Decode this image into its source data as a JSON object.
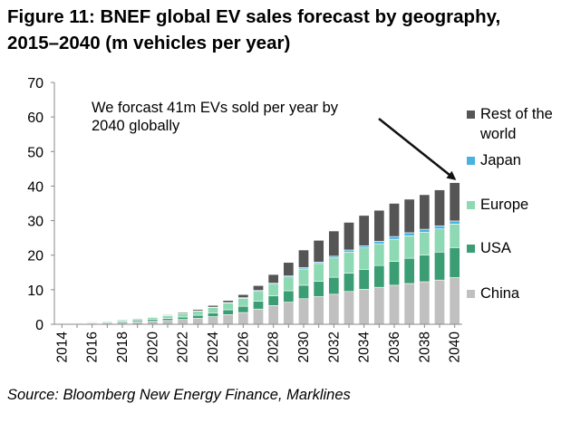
{
  "title_line1": "Figure 11: BNEF global EV sales forecast by geography,",
  "title_line2": "2015–2040 (m vehicles per year)",
  "source": "Source: Bloomberg New Energy Finance, Marklines",
  "chart_data": {
    "type": "bar",
    "stacked": true,
    "title": "Figure 11: BNEF global EV sales forecast by geography, 2015–2040 (m vehicles per year)",
    "xlabel": "",
    "ylabel": "",
    "ylim": [
      0,
      70
    ],
    "yticks": [
      0,
      10,
      20,
      30,
      40,
      50,
      60,
      70
    ],
    "grid": false,
    "legend_position": "right",
    "categories": [
      "2014",
      "2015",
      "2016",
      "2017",
      "2018",
      "2019",
      "2020",
      "2021",
      "2022",
      "2023",
      "2024",
      "2025",
      "2026",
      "2027",
      "2028",
      "2029",
      "2030",
      "2031",
      "2032",
      "2033",
      "2034",
      "2035",
      "2036",
      "2037",
      "2038",
      "2039",
      "2040"
    ],
    "x_tick_labels": [
      "2014",
      "2016",
      "2018",
      "2020",
      "2022",
      "2024",
      "2026",
      "2028",
      "2030",
      "2032",
      "2034",
      "2036",
      "2038",
      "2040"
    ],
    "series": [
      {
        "name": "China",
        "color": "#c0c0c0",
        "values": [
          0.1,
          0.2,
          0.3,
          0.4,
          0.6,
          0.7,
          0.9,
          1.1,
          1.4,
          1.7,
          2.2,
          2.8,
          3.4,
          4.4,
          5.4,
          6.4,
          7.4,
          8.0,
          8.7,
          9.5,
          10.1,
          10.7,
          11.3,
          11.8,
          12.3,
          12.8,
          13.5
        ]
      },
      {
        "name": "USA",
        "color": "#3a9d73",
        "values": [
          0.1,
          0.1,
          0.2,
          0.2,
          0.3,
          0.4,
          0.5,
          0.6,
          0.7,
          0.9,
          1.1,
          1.4,
          1.8,
          2.3,
          2.8,
          3.3,
          3.9,
          4.4,
          4.9,
          5.3,
          5.8,
          6.3,
          6.9,
          7.3,
          7.7,
          8.1,
          8.7
        ]
      },
      {
        "name": "Europe",
        "color": "#8dd9b3",
        "values": [
          0.1,
          0.2,
          0.2,
          0.3,
          0.4,
          0.5,
          0.6,
          0.8,
          1.0,
          1.2,
          1.5,
          1.9,
          2.3,
          2.8,
          3.4,
          4.0,
          4.7,
          5.2,
          5.6,
          6.1,
          6.2,
          6.3,
          6.4,
          6.5,
          6.6,
          6.7,
          6.8
        ]
      },
      {
        "name": "Japan",
        "color": "#4ab2e0",
        "values": [
          0.05,
          0.05,
          0.05,
          0.05,
          0.05,
          0.05,
          0.05,
          0.1,
          0.1,
          0.1,
          0.15,
          0.2,
          0.2,
          0.3,
          0.3,
          0.3,
          0.4,
          0.4,
          0.5,
          0.6,
          0.6,
          0.7,
          0.8,
          0.9,
          0.9,
          0.9,
          0.9
        ]
      },
      {
        "name": "Rest of the world",
        "color": "#555555",
        "values": [
          0.05,
          0.05,
          0.05,
          0.05,
          0.05,
          0.1,
          0.15,
          0.2,
          0.3,
          0.4,
          0.5,
          0.6,
          0.9,
          1.4,
          2.5,
          3.9,
          5.1,
          6.3,
          7.3,
          8.0,
          8.8,
          9.0,
          9.6,
          9.7,
          10.0,
          10.4,
          11.1
        ]
      }
    ],
    "legend_order": [
      "Rest of the world",
      "Japan",
      "Europe",
      "USA",
      "China"
    ],
    "legend_labels": {
      "Rest of the world": [
        "Rest of the",
        "world"
      ],
      "Japan": [
        "Japan"
      ],
      "Europe": [
        "Europe"
      ],
      "USA": [
        "USA"
      ],
      "China": [
        "China"
      ]
    },
    "annotation": {
      "lines": [
        "We forcast 41m EVs sold per year by",
        "2040 globally"
      ],
      "points_to_category": "2040",
      "points_to_value": 41
    }
  }
}
